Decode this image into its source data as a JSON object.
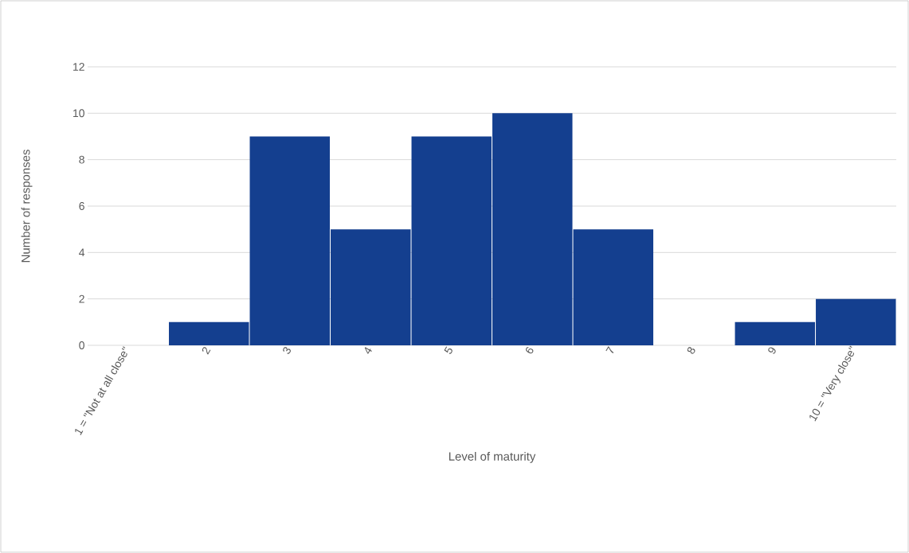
{
  "chart_data": {
    "type": "bar",
    "xlabel": "Level of maturity",
    "ylabel": "Number of responses",
    "categories": [
      "1 = \"Not at all close\"",
      "2",
      "3",
      "4",
      "5",
      "6",
      "7",
      "8",
      "9",
      "10 = \"Very close\""
    ],
    "values": [
      0,
      1,
      9,
      5,
      9,
      10,
      5,
      0,
      1,
      2
    ],
    "color": "#143f8f",
    "ylim": [
      0,
      12
    ],
    "yticks": [
      0,
      2,
      4,
      6,
      8,
      10,
      12
    ],
    "grid": "y"
  }
}
